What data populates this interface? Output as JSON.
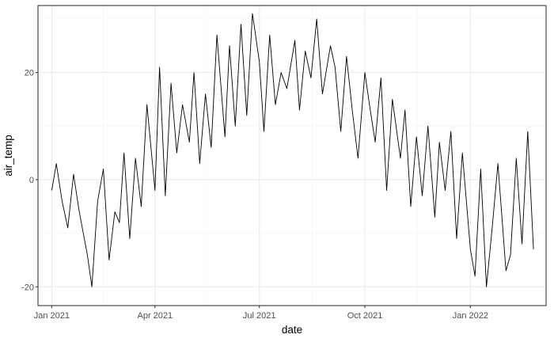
{
  "chart_data": {
    "type": "line",
    "title": "",
    "xlabel": "date",
    "ylabel": "air_temp",
    "x_type": "date",
    "xlim": [
      "2020-12-20",
      "2022-03-08"
    ],
    "ylim": [
      -23.5,
      32.5
    ],
    "x_ticks": [
      {
        "label": "Jan 2021",
        "value": "2021-01-01"
      },
      {
        "label": "Apr 2021",
        "value": "2021-04-01"
      },
      {
        "label": "Jul 2021",
        "value": "2021-07-01"
      },
      {
        "label": "Oct 2021",
        "value": "2021-10-01"
      },
      {
        "label": "Jan 2022",
        "value": "2022-01-01"
      }
    ],
    "y_ticks": [
      {
        "label": "-20",
        "value": -20
      },
      {
        "label": "0",
        "value": 0
      },
      {
        "label": "20",
        "value": 20
      }
    ],
    "grid": true,
    "legend": "none",
    "series": [
      {
        "color": "#000000",
        "x": [
          "2021-01-01",
          "2021-01-05",
          "2021-01-10",
          "2021-01-15",
          "2021-01-20",
          "2021-01-25",
          "2021-02-01",
          "2021-02-05",
          "2021-02-10",
          "2021-02-15",
          "2021-02-20",
          "2021-02-25",
          "2021-03-01",
          "2021-03-05",
          "2021-03-10",
          "2021-03-15",
          "2021-03-20",
          "2021-03-25",
          "2021-04-01",
          "2021-04-05",
          "2021-04-10",
          "2021-04-15",
          "2021-04-20",
          "2021-04-25",
          "2021-05-01",
          "2021-05-05",
          "2021-05-10",
          "2021-05-15",
          "2021-05-20",
          "2021-05-25",
          "2021-06-01",
          "2021-06-05",
          "2021-06-10",
          "2021-06-15",
          "2021-06-20",
          "2021-06-25",
          "2021-07-01",
          "2021-07-05",
          "2021-07-10",
          "2021-07-15",
          "2021-07-20",
          "2021-07-25",
          "2021-08-01",
          "2021-08-05",
          "2021-08-10",
          "2021-08-15",
          "2021-08-20",
          "2021-08-25",
          "2021-09-01",
          "2021-09-05",
          "2021-09-10",
          "2021-09-15",
          "2021-09-20",
          "2021-09-25",
          "2021-10-01",
          "2021-10-05",
          "2021-10-10",
          "2021-10-15",
          "2021-10-20",
          "2021-10-25",
          "2021-11-01",
          "2021-11-05",
          "2021-11-10",
          "2021-11-15",
          "2021-11-20",
          "2021-11-25",
          "2021-12-01",
          "2021-12-05",
          "2021-12-10",
          "2021-12-15",
          "2021-12-20",
          "2021-12-25",
          "2022-01-01",
          "2022-01-05",
          "2022-01-10",
          "2022-01-15",
          "2022-01-20",
          "2022-01-25",
          "2022-02-01",
          "2022-02-05",
          "2022-02-10",
          "2022-02-15",
          "2022-02-20",
          "2022-02-25"
        ],
        "values": [
          -2,
          3,
          -4,
          -9,
          1,
          -6,
          -14,
          -20,
          -4,
          2,
          -15,
          -6,
          -8,
          5,
          -11,
          4,
          -5,
          14,
          -2,
          21,
          -3,
          18,
          5,
          14,
          7,
          20,
          3,
          16,
          6,
          27,
          8,
          25,
          10,
          29,
          12,
          31,
          22,
          9,
          27,
          14,
          20,
          17,
          26,
          13,
          24,
          19,
          30,
          16,
          25,
          21,
          9,
          23,
          13,
          4,
          20,
          14,
          7,
          19,
          -2,
          15,
          4,
          13,
          -5,
          8,
          -3,
          10,
          -7,
          7,
          -2,
          9,
          -11,
          5,
          -13,
          -18,
          2,
          -20,
          -9,
          3,
          -17,
          -14,
          4,
          -12,
          9,
          -13
        ]
      }
    ]
  }
}
